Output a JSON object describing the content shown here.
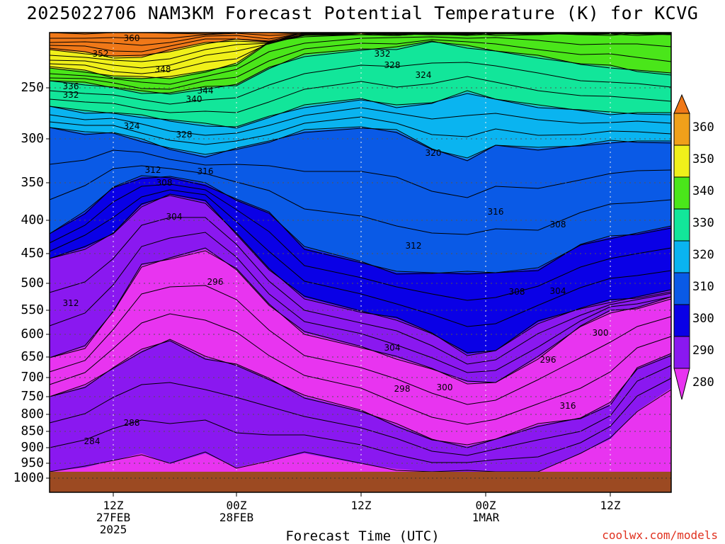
{
  "title": "2025022706 NAM3KM Forecast Potential Temperature (K) for KCVG",
  "xlabel": "Forecast Time (UTC)",
  "credit": "coolwx.com/models",
  "colorbar_ticks": [
    "360",
    "350",
    "340",
    "330",
    "320",
    "310",
    "300",
    "290",
    "280"
  ],
  "colors": {
    "ground": "#9c4a22",
    "bands": [
      "#e834f0",
      "#8a18f0",
      "#0a00e6",
      "#0a5ae6",
      "#0ab4f0",
      "#12e69a",
      "#4ae61a",
      "#f0f01a",
      "#f0a01a",
      "#f07818"
    ]
  },
  "chart_data": {
    "type": "heatmap",
    "title": "2025022706 NAM3KM Forecast Potential Temperature (K) for KCVG",
    "xlabel": "Forecast Time (UTC)",
    "ylabel": "",
    "yaxis_ticks": [
      "250",
      "300",
      "350",
      "400",
      "450",
      "500",
      "550",
      "600",
      "650",
      "700",
      "750",
      "800",
      "850",
      "900",
      "950",
      "1000"
    ],
    "xaxis_ticks": [
      {
        "lines": [
          "12Z",
          "27FEB",
          "2025"
        ]
      },
      {
        "lines": [
          "00Z",
          "28FEB"
        ]
      },
      {
        "lines": [
          "12Z"
        ]
      },
      {
        "lines": [
          "00Z",
          "1MAR"
        ]
      },
      {
        "lines": [
          "12Z"
        ]
      }
    ],
    "colorbar_levels": [
      280,
      290,
      300,
      310,
      320,
      330,
      340,
      350,
      360
    ],
    "contour_interval": 4,
    "contour_labels": [
      "360",
      "352",
      "348",
      "344",
      "340",
      "336",
      "332",
      "324",
      "328",
      "312",
      "316",
      "308",
      "304",
      "296",
      "288",
      "284",
      "332",
      "328",
      "324",
      "320",
      "316",
      "312",
      "308",
      "304",
      "300",
      "296",
      "298",
      "300",
      "304",
      "308",
      "312",
      "316"
    ]
  }
}
